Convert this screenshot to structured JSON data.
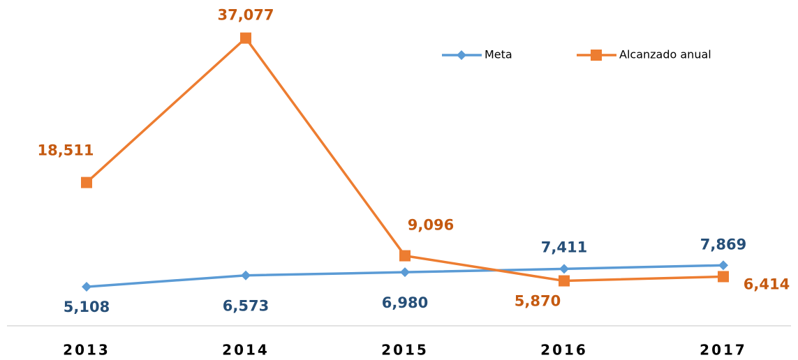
{
  "chart_data": {
    "type": "line",
    "categories": [
      "2013",
      "2014",
      "2015",
      "2016",
      "2017"
    ],
    "series": [
      {
        "name": "Meta",
        "color": "#5b9bd5",
        "label_color": "#264f78",
        "marker": "diamond",
        "values": [
          5108,
          6573,
          6980,
          7411,
          7869
        ],
        "value_labels": [
          "5,108",
          "6,573",
          "6,980",
          "7,411",
          "7,869"
        ]
      },
      {
        "name": "Alcanzado anual",
        "color": "#ed7d31",
        "label_color": "#c55a11",
        "marker": "square",
        "values": [
          18511,
          37077,
          9096,
          5870,
          6414
        ],
        "value_labels": [
          "18,511",
          "37,077",
          "9,096",
          "5,870",
          "6,414"
        ]
      }
    ],
    "ylim": [
      0,
      40000
    ],
    "legend": "top-right"
  }
}
